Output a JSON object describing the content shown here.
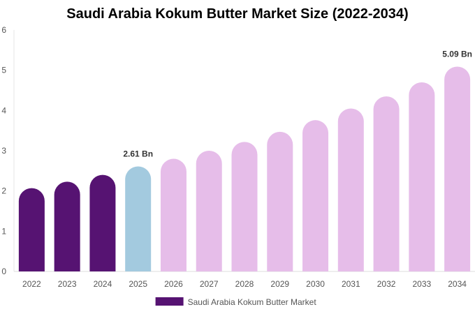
{
  "chart_data": {
    "type": "bar",
    "title": "Saudi Arabia Kokum Butter Market Size (2022-2034)",
    "xlabel": "",
    "ylabel": "",
    "categories": [
      "2022",
      "2023",
      "2024",
      "2025",
      "2026",
      "2027",
      "2028",
      "2029",
      "2030",
      "2031",
      "2032",
      "2033",
      "2034"
    ],
    "series": [
      {
        "name": "Saudi Arabia Kokum Butter Market",
        "values": [
          2.07,
          2.23,
          2.4,
          2.61,
          2.8,
          3.0,
          3.22,
          3.47,
          3.76,
          4.05,
          4.35,
          4.7,
          5.09
        ]
      }
    ],
    "ylim": [
      0,
      6
    ],
    "yticks": [
      0,
      1,
      2,
      3,
      4,
      5,
      6
    ],
    "data_labels": [
      {
        "category": "2025",
        "text": "2.61 Bn"
      },
      {
        "category": "2034",
        "text": "5.09 Bn"
      }
    ],
    "colors": {
      "historical": "#561372",
      "current": "#a3cadf",
      "forecast": "#e6bde9",
      "legend": "#561372"
    },
    "bar_color_groups": [
      "historical",
      "historical",
      "historical",
      "current",
      "forecast",
      "forecast",
      "forecast",
      "forecast",
      "forecast",
      "forecast",
      "forecast",
      "forecast",
      "forecast"
    ],
    "grid": false,
    "legend_position": "bottom-center"
  }
}
